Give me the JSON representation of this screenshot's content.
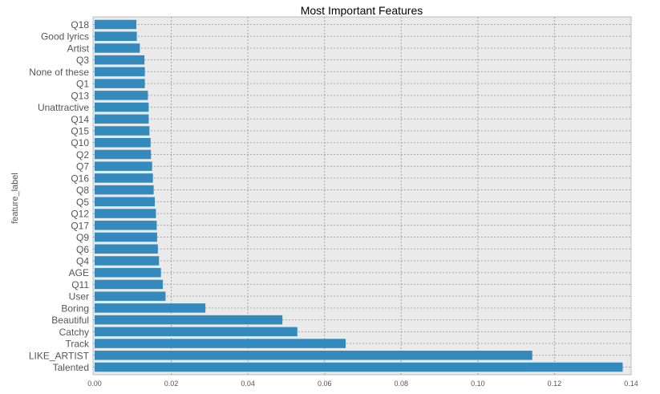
{
  "chart_data": {
    "type": "bar",
    "orientation": "horizontal",
    "title": "Most Important Features",
    "xlabel": "",
    "ylabel": "feature_label",
    "categories": [
      "Q18",
      "Good lyrics",
      "Artist",
      "Q3",
      "None of these",
      "Q1",
      "Q13",
      "Unattractive",
      "Q14",
      "Q15",
      "Q10",
      "Q2",
      "Q7",
      "Q16",
      "Q8",
      "Q5",
      "Q12",
      "Q17",
      "Q9",
      "Q6",
      "Q4",
      "AGE",
      "Q11",
      "User",
      "Boring",
      "Beautiful",
      "Catchy",
      "Track",
      "LIKE_ARTIST",
      "Talented"
    ],
    "values": [
      0.0109,
      0.011,
      0.0118,
      0.013,
      0.0131,
      0.0131,
      0.0139,
      0.0141,
      0.0141,
      0.0143,
      0.0146,
      0.0147,
      0.015,
      0.0152,
      0.0154,
      0.0157,
      0.016,
      0.0162,
      0.0163,
      0.0165,
      0.0168,
      0.0173,
      0.0178,
      0.0185,
      0.0289,
      0.049,
      0.0529,
      0.0655,
      0.1142,
      0.1378
    ],
    "xlim": [
      0,
      0.14
    ],
    "x_ticks": [
      "0.00",
      "0.02",
      "0.04",
      "0.06",
      "0.08",
      "0.10",
      "0.12",
      "0.14"
    ],
    "x_tick_values": [
      0,
      0.02,
      0.04,
      0.06,
      0.08,
      0.1,
      0.12,
      0.14
    ],
    "grid": true,
    "bar_color": "#348abd",
    "background_color": "#eaeaea"
  }
}
